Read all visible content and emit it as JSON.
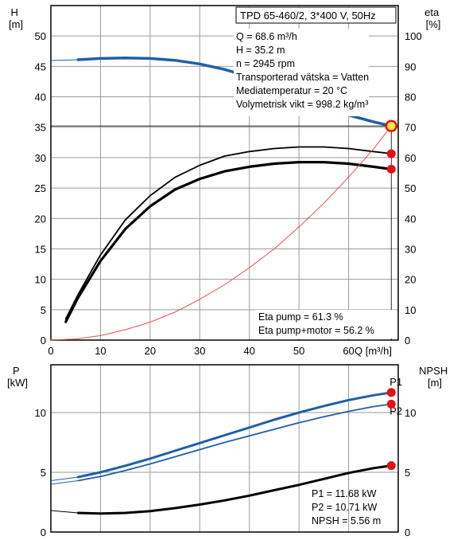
{
  "colors": {
    "background": "#ffffff",
    "grid": "#9a9a9a",
    "head_curve": "#1f5fa6",
    "power_curves": "#1f5fa6",
    "eta_curves": "#000000",
    "system_curve": "#e05050",
    "marker_fill": "#e81010",
    "op_marker_fill": "#ffee33"
  },
  "header": {
    "pump_title": "TPD 65-460/2, 3*400 V, 50Hz"
  },
  "operating_point": {
    "q_label": "Q = 68.6 m³/h",
    "h_label": "H = 35.2 m",
    "n_label": "n = 2945 rpm",
    "fluid_label": "Transporterad vätska = Vatten",
    "temp_label": "Mediatemperatur = 20 °C",
    "density_label": "Volymetrisk vikt = 998.2 kg/m³"
  },
  "efficiency": {
    "eta_pump_label": "Eta pump = 61.3 %",
    "eta_pump_motor_label": "Eta pump+motor = 56.2 %"
  },
  "power": {
    "p1_label": "P1 = 11.68 kW",
    "p2_label": "P2 = 10.71 kW",
    "npsh_label": "NPSH = 5.56 m"
  },
  "chart_data": [
    {
      "type": "line",
      "xlabel": "Q [m³/h]",
      "ylabel": "H\n[m]",
      "y2label": "eta\n[%]",
      "xlim": [
        0,
        70
      ],
      "ylim": [
        0,
        55
      ],
      "y2lim": [
        0,
        110
      ],
      "x_ticks": [
        0,
        10,
        20,
        30,
        40,
        50,
        60
      ],
      "y_ticks": [
        0,
        5,
        10,
        15,
        20,
        25,
        30,
        35,
        40,
        45,
        50
      ],
      "y2_ticks": [
        0,
        10,
        20,
        30,
        40,
        50,
        60,
        70,
        80,
        90,
        100
      ],
      "grid": true,
      "series": [
        {
          "name": "H",
          "axis": "left",
          "x": [
            5.5,
            10,
            15,
            20,
            25,
            30,
            35,
            40,
            45,
            50,
            55,
            60,
            65,
            68.6
          ],
          "y": [
            46.1,
            46.3,
            46.4,
            46.3,
            46.0,
            45.4,
            44.5,
            43.3,
            41.7,
            39.9,
            38.4,
            37.0,
            35.9,
            35.2
          ]
        },
        {
          "name": "Eta pump",
          "axis": "right",
          "x": [
            3,
            5.5,
            10,
            15,
            20,
            25,
            30,
            35,
            40,
            45,
            50,
            55,
            60,
            65,
            68.6
          ],
          "y": [
            7,
            15,
            28,
            39.5,
            47.5,
            53.5,
            57.5,
            60.5,
            62,
            63,
            63.5,
            63.5,
            63,
            62,
            61.3
          ]
        },
        {
          "name": "Eta pump+motor",
          "axis": "right",
          "x": [
            3,
            5.5,
            10,
            15,
            20,
            25,
            30,
            35,
            40,
            45,
            50,
            55,
            60,
            65,
            68.6
          ],
          "y": [
            6,
            14,
            26,
            36.5,
            44,
            49.5,
            53,
            55.5,
            57,
            58,
            58.5,
            58.5,
            58,
            57,
            56.2
          ]
        },
        {
          "name": "system",
          "axis": "left",
          "x": [
            0,
            5,
            10,
            15,
            20,
            25,
            30,
            35,
            40,
            45,
            50,
            55,
            60,
            65,
            68.6
          ],
          "y": [
            0,
            0.18,
            0.73,
            1.7,
            2.95,
            4.6,
            6.7,
            9.1,
            11.9,
            15.0,
            18.6,
            22.5,
            26.8,
            31.4,
            35.2
          ]
        }
      ],
      "points": [
        {
          "name": "op",
          "axis": "left",
          "x": 68.6,
          "y": 35.2,
          "style": "op"
        },
        {
          "name": "eta1",
          "axis": "right",
          "x": 68.6,
          "y": 61.3,
          "style": "red"
        },
        {
          "name": "eta2",
          "axis": "right",
          "x": 68.6,
          "y": 56.2,
          "style": "red"
        }
      ]
    },
    {
      "type": "line",
      "ylabel": "P\n[kW]",
      "y2label": "NPSH\n[m]",
      "xlim": [
        0,
        70
      ],
      "ylim": [
        0,
        14
      ],
      "y2lim": [
        0,
        14
      ],
      "y_ticks": [
        0,
        5,
        10
      ],
      "y2_ticks": [
        0,
        5,
        10
      ],
      "grid": true,
      "series": [
        {
          "name": "P1",
          "axis": "left",
          "x": [
            0,
            5.5,
            10,
            15,
            20,
            25,
            30,
            35,
            40,
            45,
            50,
            55,
            60,
            65,
            68.6
          ],
          "y": [
            4.3,
            4.6,
            5.0,
            5.55,
            6.15,
            6.8,
            7.45,
            8.1,
            8.75,
            9.4,
            10.0,
            10.55,
            11.05,
            11.45,
            11.68
          ]
        },
        {
          "name": "P2",
          "axis": "left",
          "x": [
            0,
            5.5,
            10,
            15,
            20,
            25,
            30,
            35,
            40,
            45,
            50,
            55,
            60,
            65,
            68.6
          ],
          "y": [
            4.0,
            4.3,
            4.65,
            5.15,
            5.7,
            6.3,
            6.9,
            7.5,
            8.05,
            8.6,
            9.15,
            9.65,
            10.1,
            10.5,
            10.71
          ]
        },
        {
          "name": "NPSH",
          "axis": "right",
          "x": [
            0,
            5.5,
            10,
            15,
            20,
            25,
            30,
            35,
            40,
            45,
            50,
            55,
            60,
            65,
            68.6
          ],
          "y": [
            1.8,
            1.6,
            1.55,
            1.6,
            1.75,
            2.0,
            2.3,
            2.65,
            3.05,
            3.5,
            3.95,
            4.45,
            4.95,
            5.35,
            5.56
          ]
        }
      ],
      "series_tags": {
        "P1": "P1",
        "P2": "P2"
      },
      "points": [
        {
          "name": "p1pt",
          "axis": "left",
          "x": 68.6,
          "y": 11.68,
          "style": "red"
        },
        {
          "name": "p2pt",
          "axis": "left",
          "x": 68.6,
          "y": 10.71,
          "style": "red"
        },
        {
          "name": "npshpt",
          "axis": "right",
          "x": 68.6,
          "y": 5.56,
          "style": "red"
        }
      ]
    }
  ]
}
